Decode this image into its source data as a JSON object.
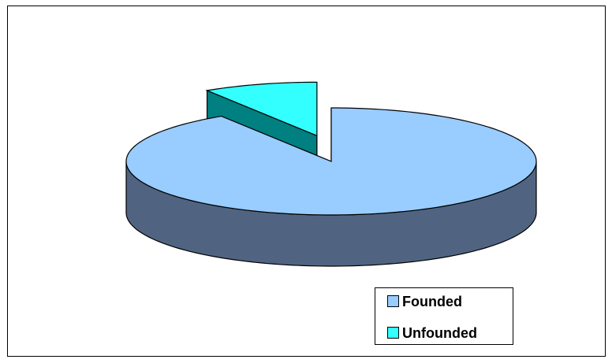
{
  "chart_data": {
    "type": "pie3d",
    "categories": [
      "Founded",
      "Unfounded"
    ],
    "values": [
      91,
      9
    ],
    "colors": [
      "#99ccff",
      "#33ffff"
    ],
    "side_colors": [
      "#506482",
      "#008080"
    ],
    "exploded": [
      false,
      true
    ],
    "legend": "bottom-right"
  }
}
